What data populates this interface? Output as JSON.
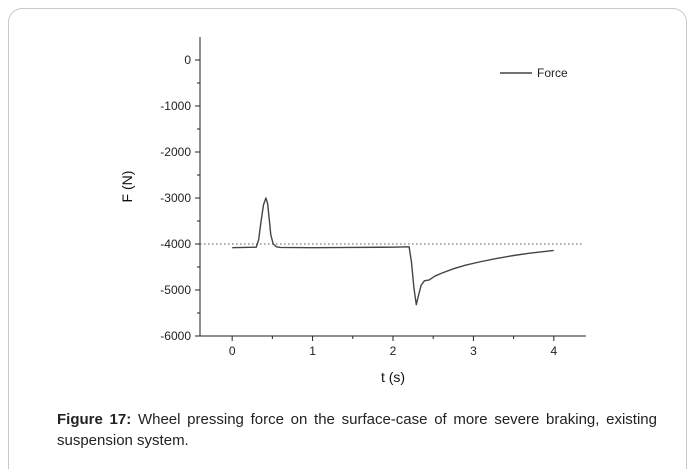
{
  "chart_data": {
    "type": "line",
    "xlabel": "t (s)",
    "ylabel": "F (N)",
    "xlim": [
      -0.4,
      4.4
    ],
    "ylim": [
      -6000,
      500
    ],
    "xticks": [
      0,
      1,
      2,
      3,
      4
    ],
    "yticks": [
      0,
      -1000,
      -2000,
      -3000,
      -4000,
      -5000,
      -6000
    ],
    "xtick_labels": [
      "0",
      "1",
      "2",
      "3",
      "4"
    ],
    "ytick_labels": [
      "0",
      "-1000",
      "-2000",
      "-3000",
      "-4000",
      "-5000",
      "-6000"
    ],
    "reference_line": {
      "y": -4000,
      "style": "dotted"
    },
    "legend": {
      "position": "top-right",
      "entries": [
        "Force"
      ]
    },
    "series": [
      {
        "name": "Force",
        "color": "#444444",
        "x": [
          0,
          0.3,
          0.33,
          0.36,
          0.39,
          0.42,
          0.44,
          0.46,
          0.48,
          0.51,
          0.55,
          0.6,
          1.0,
          1.5,
          2.0,
          2.2,
          2.23,
          2.26,
          2.29,
          2.32,
          2.35,
          2.39,
          2.45,
          2.52,
          2.6,
          2.75,
          2.9,
          3.1,
          3.3,
          3.5,
          3.7,
          3.85,
          4.0
        ],
        "y": [
          -4080,
          -4070,
          -3900,
          -3500,
          -3150,
          -3000,
          -3120,
          -3450,
          -3800,
          -4000,
          -4060,
          -4075,
          -4080,
          -4075,
          -4070,
          -4060,
          -4400,
          -4950,
          -5320,
          -5100,
          -4900,
          -4800,
          -4780,
          -4700,
          -4640,
          -4540,
          -4460,
          -4380,
          -4310,
          -4250,
          -4200,
          -4170,
          -4140
        ]
      }
    ]
  },
  "caption": {
    "label": "Figure 17:",
    "text": " Wheel pressing force on the surface-case of more severe braking, existing suspension system."
  }
}
